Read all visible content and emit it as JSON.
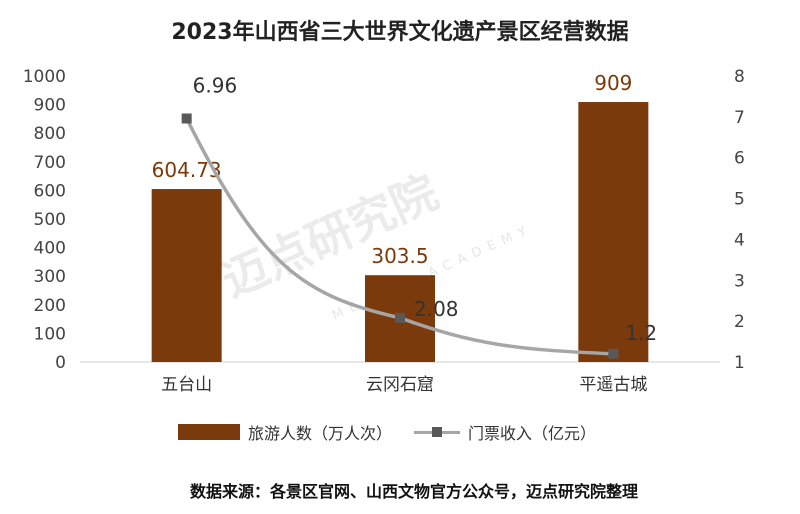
{
  "chart_data": {
    "type": "bar+line",
    "title": "2023年山西省三大世界文化遗产景区经营数据",
    "categories": [
      "五台山",
      "云冈石窟",
      "平遥古城"
    ],
    "series": [
      {
        "name": "旅游人数（万人次）",
        "kind": "bar",
        "axis": "left",
        "values": [
          604.73,
          303.5,
          909
        ],
        "labels": [
          "604.73",
          "303.5",
          "909"
        ]
      },
      {
        "name": "门票收入（亿元）",
        "kind": "line",
        "axis": "right",
        "values": [
          6.96,
          2.08,
          1.2
        ],
        "labels": [
          "6.96",
          "2.08",
          "1.2"
        ]
      }
    ],
    "ylim_left": [
      0,
      1000
    ],
    "yticks_left": [
      "0",
      "100",
      "200",
      "300",
      "400",
      "500",
      "600",
      "700",
      "800",
      "900",
      "1000"
    ],
    "ylim_right": [
      1,
      8
    ],
    "yticks_right": [
      "1",
      "2",
      "3",
      "4",
      "5",
      "6",
      "7",
      "8"
    ],
    "grid": false,
    "legend_position": "bottom",
    "colors": {
      "bar": "#7a3a0b",
      "line": "#a6a6a6",
      "marker": "#595959",
      "bar_label": "#7a3a0b",
      "line_label": "#333333"
    }
  },
  "legend": {
    "bar_label": "旅游人数（万人次）",
    "line_label": "门票收入（亿元）"
  },
  "source": "数据来源：各景区官网、山西文物官方公众号，迈点研究院整理",
  "watermark": {
    "main": "迈点研究院",
    "sub": "MEADIN ACADEMY"
  }
}
